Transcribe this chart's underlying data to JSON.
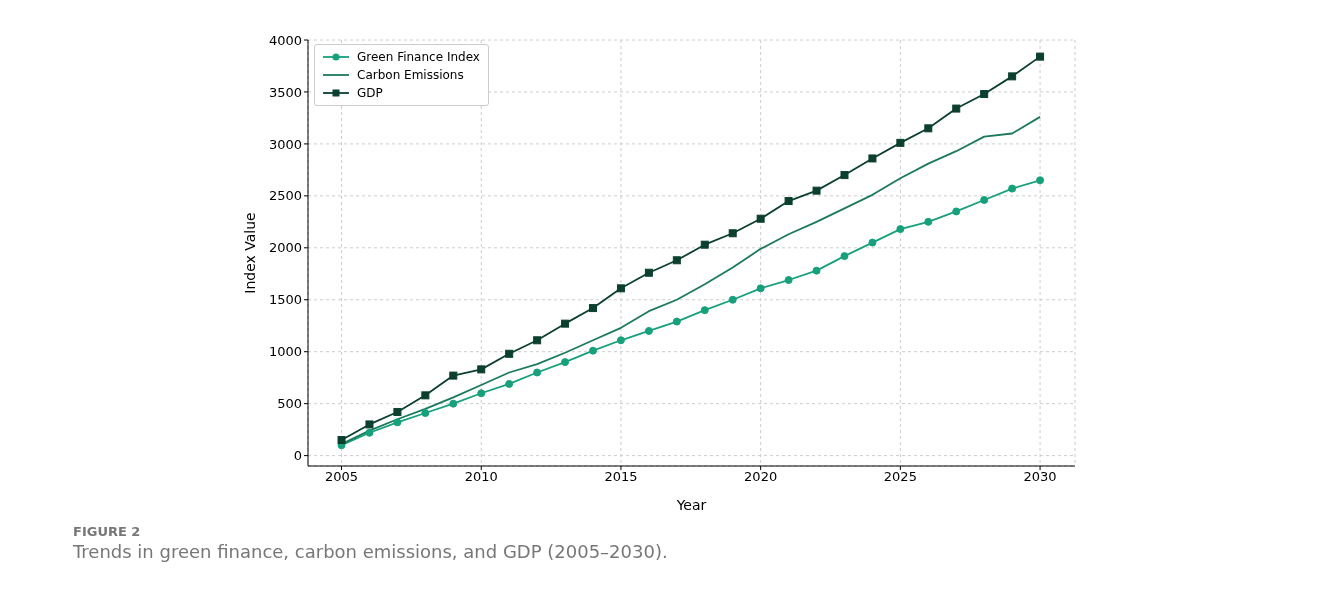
{
  "chart_data": {
    "type": "line",
    "xlabel": "Year",
    "ylabel": "Index Value",
    "annotations": [
      "FIGURE 2",
      "Trends in green finance, carbon emissions, and GDP (2005–2030)."
    ],
    "x": [
      2005,
      2006,
      2007,
      2008,
      2009,
      2010,
      2011,
      2012,
      2013,
      2014,
      2015,
      2016,
      2017,
      2018,
      2019,
      2020,
      2021,
      2022,
      2023,
      2024,
      2025,
      2026,
      2027,
      2028,
      2029,
      2030
    ],
    "series": [
      {
        "name": "Green Finance Index",
        "color": "#16a07c",
        "marker": "circle",
        "values": [
          100,
          220,
          320,
          410,
          500,
          600,
          690,
          800,
          900,
          1010,
          1110,
          1200,
          1290,
          1400,
          1500,
          1610,
          1690,
          1780,
          1920,
          2050,
          2180,
          2250,
          2350,
          2460,
          2570,
          2650
        ]
      },
      {
        "name": "Carbon Emissions",
        "color": "#1b7a5a",
        "marker": "none",
        "values": [
          110,
          240,
          350,
          450,
          560,
          680,
          800,
          880,
          990,
          1110,
          1230,
          1390,
          1500,
          1650,
          1810,
          1990,
          2130,
          2250,
          2380,
          2510,
          2670,
          2810,
          2930,
          3070,
          3100,
          3260
        ]
      },
      {
        "name": "GDP",
        "color": "#0b3f2e",
        "marker": "square",
        "values": [
          150,
          300,
          420,
          580,
          770,
          830,
          980,
          1110,
          1270,
          1420,
          1610,
          1760,
          1880,
          2030,
          2140,
          2280,
          2450,
          2550,
          2700,
          2860,
          3010,
          3150,
          3340,
          3480,
          3650,
          3840
        ]
      }
    ],
    "xlim": [
      2003.8,
      2031.25
    ],
    "xticks": [
      2005,
      2010,
      2015,
      2020,
      2025,
      2030
    ],
    "ylim": [
      -100,
      4000
    ],
    "yticks": [
      0,
      500,
      1000,
      1500,
      2000,
      2500,
      3000,
      3500,
      4000
    ],
    "grid": true,
    "legend": "top left"
  }
}
